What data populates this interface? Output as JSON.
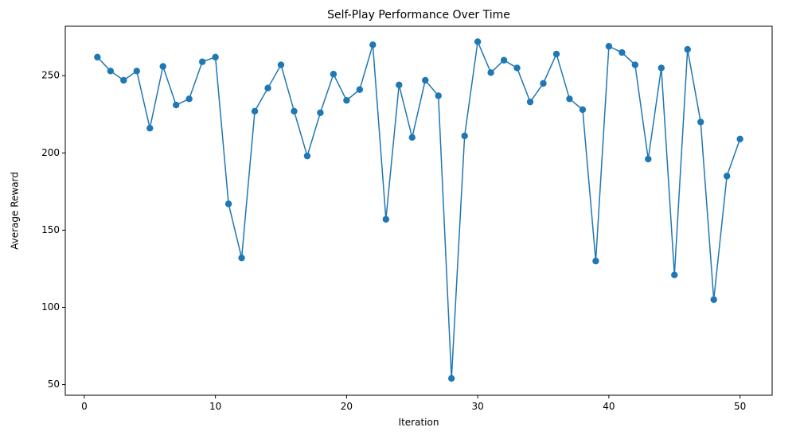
{
  "chart_data": {
    "type": "line",
    "title": "Self-Play Performance Over Time",
    "xlabel": "Iteration",
    "ylabel": "Average Reward",
    "xlim": [
      -1.45,
      52.45
    ],
    "ylim": [
      43.1,
      282.0
    ],
    "x_ticks": [
      0,
      10,
      20,
      30,
      40,
      50
    ],
    "y_ticks": [
      50,
      100,
      150,
      200,
      250
    ],
    "grid": false,
    "marker": "circle",
    "color": "#1f77b4",
    "series": [
      {
        "x": [
          1,
          2,
          3,
          4,
          5,
          6,
          7,
          8,
          9,
          10,
          11,
          12,
          13,
          14,
          15,
          16,
          17,
          18,
          19,
          20,
          21,
          22,
          23,
          24,
          25,
          26,
          27,
          28,
          29,
          30,
          31,
          32,
          33,
          34,
          35,
          36,
          37,
          38,
          39,
          40,
          41,
          42,
          43,
          44,
          45,
          46,
          47,
          48,
          49,
          50
        ],
        "values": [
          262,
          253,
          247,
          253,
          216,
          256,
          231,
          235,
          259,
          262,
          167,
          132,
          227,
          242,
          257,
          227,
          198,
          226,
          251,
          234,
          241,
          270,
          157,
          244,
          210,
          247,
          237,
          54,
          211,
          272,
          252,
          260,
          255,
          233,
          245,
          264,
          235,
          228,
          130,
          269,
          265,
          257,
          196,
          255,
          121,
          267,
          220,
          105,
          185,
          209
        ]
      }
    ]
  }
}
